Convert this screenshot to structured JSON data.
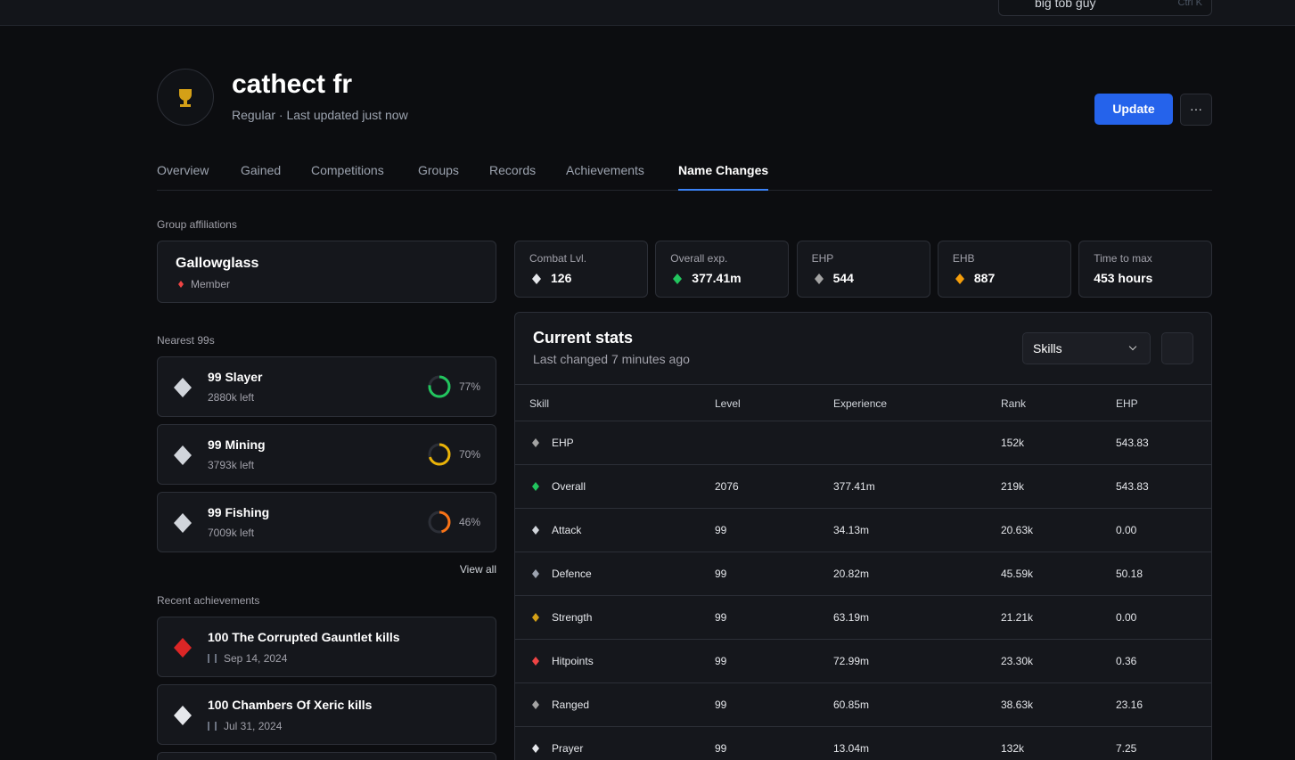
{
  "search": {
    "text": "big tob guy",
    "shortcut": "Ctrl K"
  },
  "profile": {
    "name": "cathect fr",
    "subtitle": "Regular · Last updated just now",
    "update": "Update",
    "more": "···"
  },
  "tabs": [
    "Overview",
    "Gained",
    "Competitions",
    "Groups",
    "Records",
    "Achievements",
    "Name Changes"
  ],
  "active_tab": 6,
  "groups": {
    "heading": "Group affiliations",
    "items": [
      {
        "name": "Gallowglass",
        "role": "Member"
      }
    ]
  },
  "nearest": {
    "heading": "Nearest 99s",
    "view_all": "View all",
    "items": [
      {
        "title": "99 Slayer",
        "left": "2880k left",
        "percent": 77,
        "percent_label": "77%",
        "color": "#22c55e"
      },
      {
        "title": "99 Mining",
        "left": "3793k left",
        "percent": 70,
        "percent_label": "70%",
        "color": "#eab308"
      },
      {
        "title": "99 Fishing",
        "left": "7009k left",
        "percent": 46,
        "percent_label": "46%",
        "color": "#f97316"
      }
    ]
  },
  "achievements": {
    "heading": "Recent achievements",
    "items": [
      {
        "title": "100 The Corrupted Gauntlet kills",
        "date": "Sep 14, 2024"
      },
      {
        "title": "100 Chambers Of Xeric kills",
        "date": "Jul 31, 2024"
      }
    ]
  },
  "summary": [
    {
      "label": "Combat Lvl.",
      "value": "126"
    },
    {
      "label": "Overall exp.",
      "value": "377.41m"
    },
    {
      "label": "EHP",
      "value": "544"
    },
    {
      "label": "EHB",
      "value": "887"
    },
    {
      "label": "Time to max",
      "value": "453 hours"
    }
  ],
  "stats": {
    "title": "Current stats",
    "subtitle": "Last changed 7 minutes ago",
    "select": "Skills",
    "columns": [
      "Skill",
      "Level",
      "Experience",
      "Rank",
      "EHP"
    ],
    "rows": [
      [
        "EHP",
        null,
        null,
        "152k",
        "543.83"
      ],
      [
        "Overall",
        "2076",
        "377.41m",
        "219k",
        "543.83"
      ],
      [
        "Attack",
        "99",
        "34.13m",
        "20.63k",
        "0.00"
      ],
      [
        "Defence",
        "99",
        "20.82m",
        "45.59k",
        "50.18"
      ],
      [
        "Strength",
        "99",
        "63.19m",
        "21.21k",
        "0.00"
      ],
      [
        "Hitpoints",
        "99",
        "72.99m",
        "23.30k",
        "0.36"
      ],
      [
        "Ranged",
        "99",
        "60.85m",
        "38.63k",
        "23.16"
      ],
      [
        "Prayer",
        "99",
        "13.04m",
        "132k",
        "7.25"
      ]
    ]
  }
}
